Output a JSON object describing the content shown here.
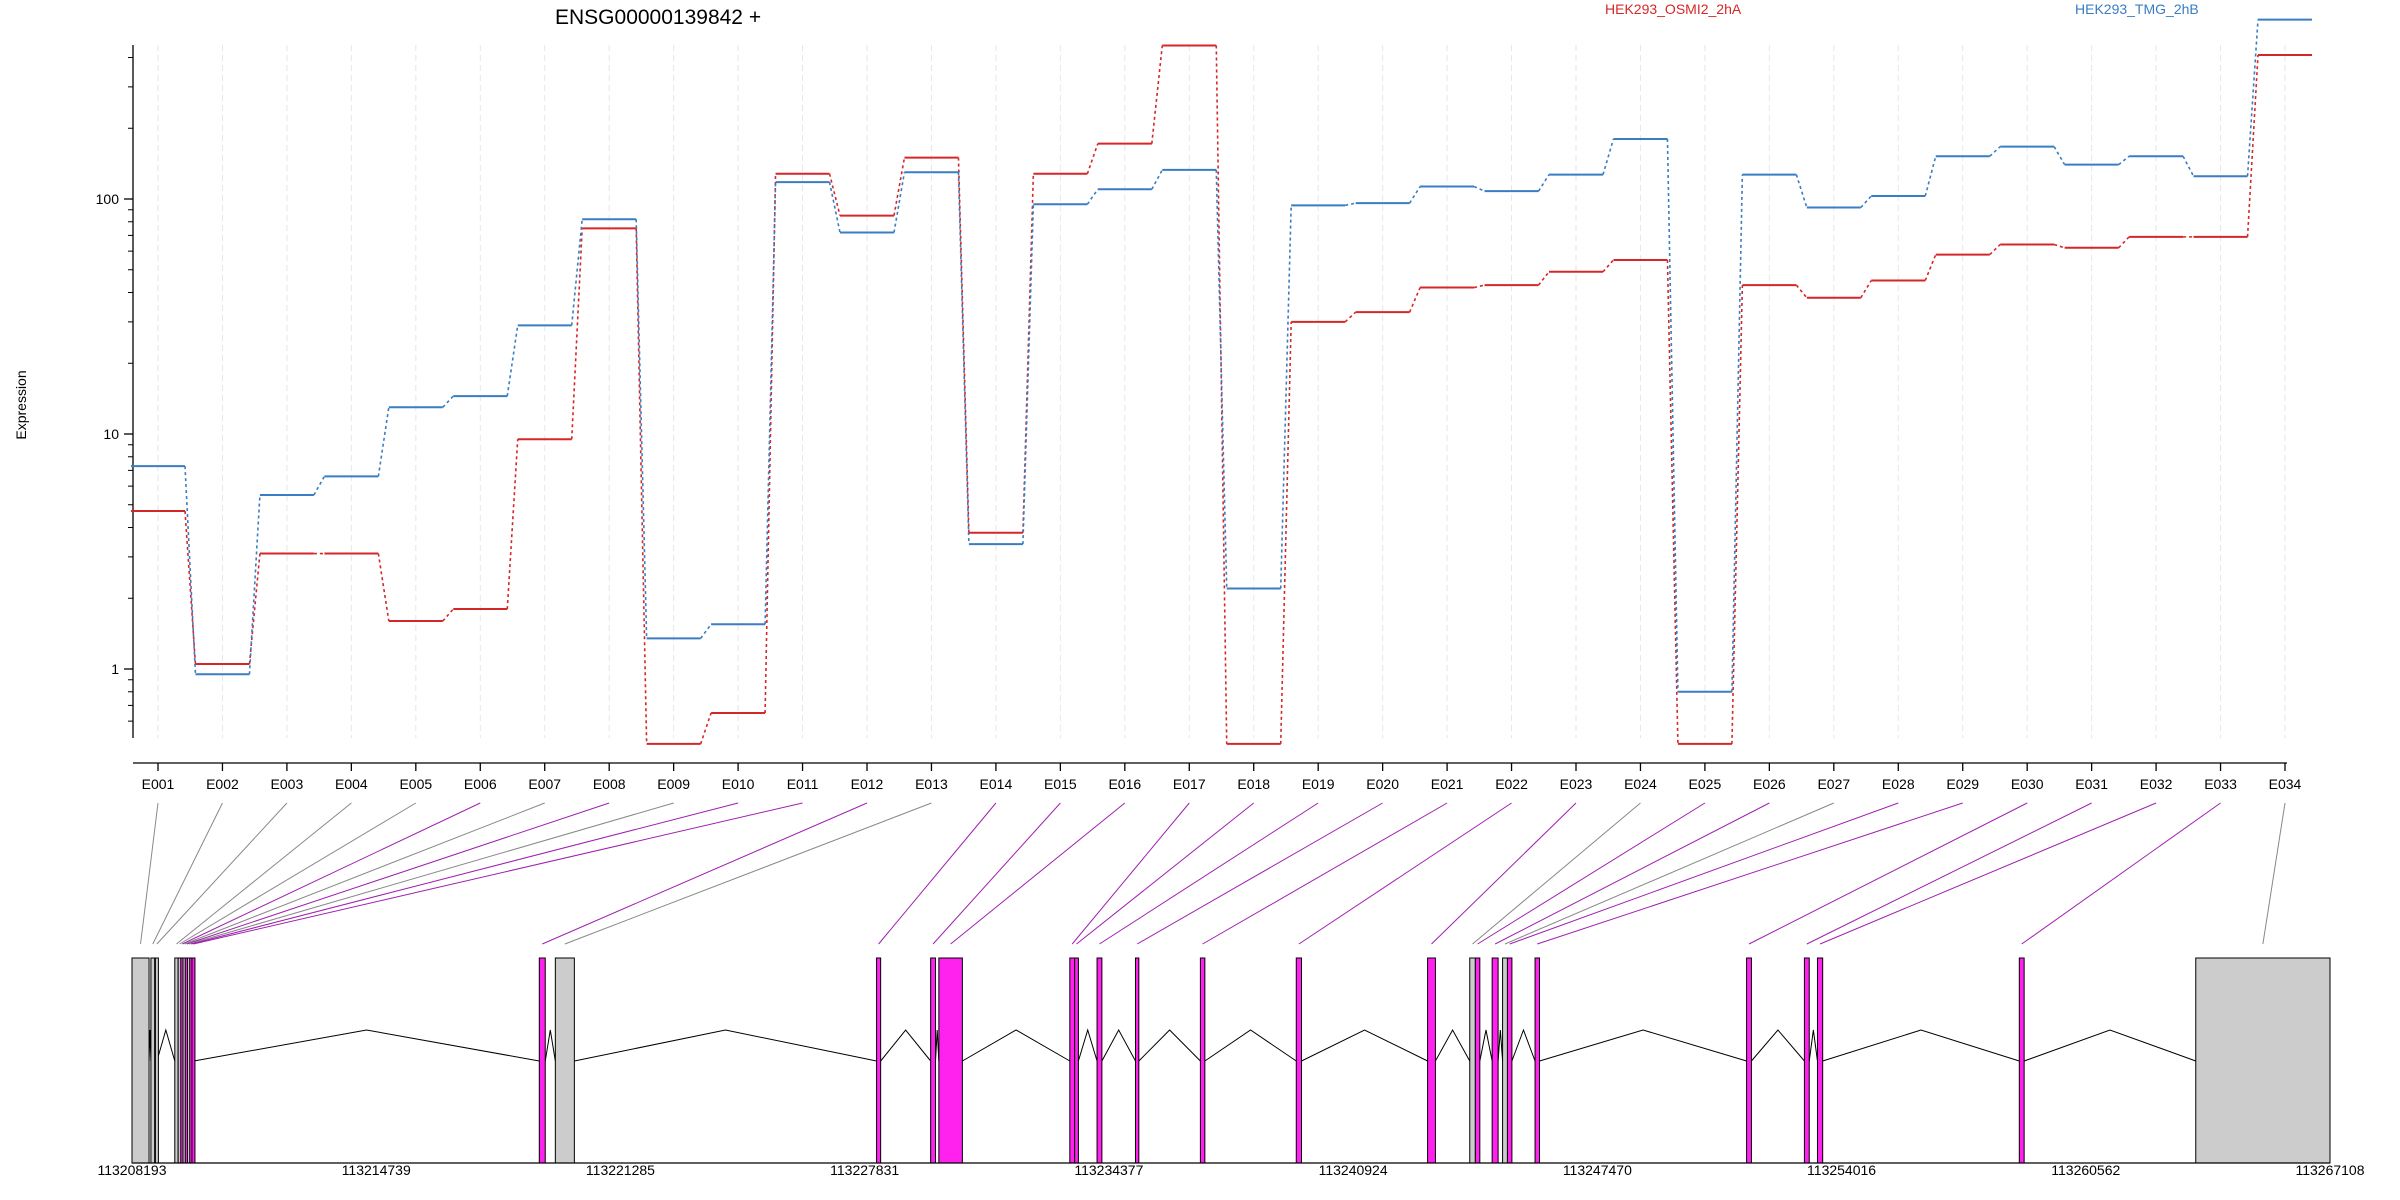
{
  "chart_data": [
    {
      "type": "line",
      "title": "ENSG00000139842 +",
      "ylabel": "Expression",
      "yscale": "log",
      "ylim": [
        0.4,
        850
      ],
      "yticks": [
        1,
        10,
        100
      ],
      "ytick_labels": [
        "1",
        "10",
        "100"
      ],
      "categories": [
        "E001",
        "E002",
        "E003",
        "E004",
        "E005",
        "E006",
        "E007",
        "E008",
        "E009",
        "E010",
        "E011",
        "E012",
        "E013",
        "E014",
        "E015",
        "E016",
        "E017",
        "E018",
        "E019",
        "E020",
        "E021",
        "E022",
        "E023",
        "E024",
        "E025",
        "E026",
        "E027",
        "E028",
        "E029",
        "E030",
        "E031",
        "E032",
        "E033",
        "E034"
      ],
      "grid": true,
      "legend_placement": "top",
      "series": [
        {
          "name": "HEK293_OSMI2_2hA",
          "color": "#d62728",
          "values": [
            4.7,
            1.05,
            3.1,
            3.1,
            1.6,
            1.8,
            9.5,
            75,
            0.48,
            0.65,
            128,
            85,
            150,
            3.8,
            128,
            172,
            450,
            0.48,
            30,
            33,
            42,
            43,
            49,
            55,
            0.48,
            43,
            38,
            45,
            58,
            64,
            62,
            69,
            69,
            410
          ]
        },
        {
          "name": "HEK293_TMG_2hB",
          "color": "#3a7dc2",
          "values": [
            7.3,
            0.95,
            5.5,
            6.6,
            13,
            14.5,
            29,
            82,
            1.35,
            1.55,
            118,
            72,
            130,
            3.4,
            95,
            110,
            133,
            2.2,
            94,
            96,
            113,
            108,
            127,
            180,
            0.8,
            127,
            92,
            103,
            152,
            167,
            140,
            152,
            125,
            580
          ]
        }
      ]
    },
    {
      "type": "gene_model",
      "x_tick_labels": [
        "113208193",
        "113214739",
        "113221285",
        "113227831",
        "113234377",
        "113240924",
        "113247470",
        "113254016",
        "113260562",
        "113267108"
      ],
      "colors": {
        "analyzed_exon": "#ff22ee",
        "other_exon": "#cccccc",
        "intron": "#000000",
        "connector_analyzed": "#a020b0",
        "connector_other": "#888888"
      },
      "exons": [
        {
          "id": "E001",
          "start": 113208193,
          "end": 113208650,
          "analyzed": false
        },
        {
          "id": "E002",
          "start": 113208700,
          "end": 113208800,
          "analyzed": false
        },
        {
          "id": "E003",
          "start": 113208820,
          "end": 113208860,
          "analyzed": false
        },
        {
          "id": "E004",
          "start": 113209340,
          "end": 113209430,
          "analyzed": false
        },
        {
          "id": "E005",
          "start": 113209430,
          "end": 113209500,
          "analyzed": false
        },
        {
          "id": "E006",
          "start": 113209500,
          "end": 113209560,
          "analyzed": true
        },
        {
          "id": "E007",
          "start": 113209560,
          "end": 113209620,
          "analyzed": false
        },
        {
          "id": "E008",
          "start": 113209620,
          "end": 113209680,
          "analyzed": true
        },
        {
          "id": "E009",
          "start": 113209680,
          "end": 113209740,
          "analyzed": false
        },
        {
          "id": "E010",
          "start": 113209740,
          "end": 113209800,
          "analyzed": true
        },
        {
          "id": "E011",
          "start": 113209800,
          "end": 113209850,
          "analyzed": true
        },
        {
          "id": "E012",
          "start": 113219110,
          "end": 113219270,
          "analyzed": true
        },
        {
          "id": "E013",
          "start": 113219540,
          "end": 113220050,
          "analyzed": false
        },
        {
          "id": "E014",
          "start": 113228150,
          "end": 113228260,
          "analyzed": true
        },
        {
          "id": "E015",
          "start": 113229600,
          "end": 113229730,
          "analyzed": true
        },
        {
          "id": "E016",
          "start": 113229820,
          "end": 113230450,
          "analyzed": true
        },
        {
          "id": "E017",
          "start": 113233330,
          "end": 113233460,
          "analyzed": true
        },
        {
          "id": "E018",
          "start": 113233460,
          "end": 113233560,
          "analyzed": true
        },
        {
          "id": "E019",
          "start": 113234060,
          "end": 113234190,
          "analyzed": true
        },
        {
          "id": "E020",
          "start": 113235090,
          "end": 113235180,
          "analyzed": true
        },
        {
          "id": "E021",
          "start": 113236830,
          "end": 113236950,
          "analyzed": true
        },
        {
          "id": "E022",
          "start": 113239400,
          "end": 113239540,
          "analyzed": true
        },
        {
          "id": "E023",
          "start": 113242920,
          "end": 113243130,
          "analyzed": true
        },
        {
          "id": "E024",
          "start": 113244050,
          "end": 113244200,
          "analyzed": false
        },
        {
          "id": "E025",
          "start": 113244200,
          "end": 113244320,
          "analyzed": true
        },
        {
          "id": "E026",
          "start": 113244650,
          "end": 113244810,
          "analyzed": true
        },
        {
          "id": "E027",
          "start": 113244930,
          "end": 113245060,
          "analyzed": false
        },
        {
          "id": "E028",
          "start": 113245060,
          "end": 113245180,
          "analyzed": true
        },
        {
          "id": "E029",
          "start": 113245800,
          "end": 113245920,
          "analyzed": true
        },
        {
          "id": "E030",
          "start": 113251470,
          "end": 113251600,
          "analyzed": true
        },
        {
          "id": "E031",
          "start": 113253020,
          "end": 113253150,
          "analyzed": true
        },
        {
          "id": "E032",
          "start": 113253370,
          "end": 113253510,
          "analyzed": true
        },
        {
          "id": "E033",
          "start": 113258780,
          "end": 113258910,
          "analyzed": true
        },
        {
          "id": "E034",
          "start": 113263510,
          "end": 113267108,
          "analyzed": false
        }
      ]
    }
  ]
}
